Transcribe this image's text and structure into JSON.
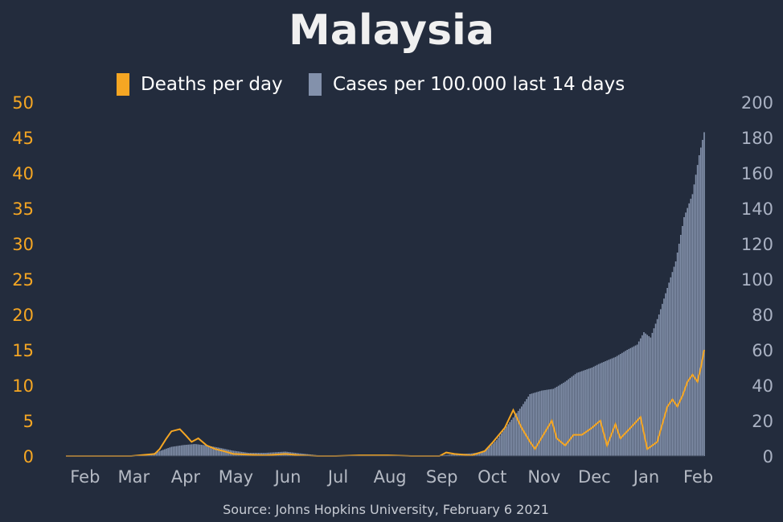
{
  "chart_data": {
    "type": "bar+line",
    "title": "Malaysia",
    "source": "Source: Johns Hopkins University, February 6 2021",
    "legend": [
      {
        "label": "Deaths per day",
        "color": "#f5a623",
        "kind": "line"
      },
      {
        "label": "Cases per 100.000 last 14 days",
        "color": "#8391ab",
        "kind": "bar"
      }
    ],
    "legend_position": "top-center",
    "x_ticks": [
      "Feb",
      "Mar",
      "Apr",
      "May",
      "Jun",
      "Jul",
      "Aug",
      "Sep",
      "Oct",
      "Nov",
      "Dec",
      "Jan",
      "Feb"
    ],
    "y_left": {
      "min": 0,
      "max": 50,
      "ticks": [
        "0",
        "5",
        "10",
        "15",
        "20",
        "25",
        "30",
        "35",
        "40",
        "45",
        "50"
      ],
      "color": "#f5a623"
    },
    "y_right": {
      "min": 0,
      "max": 200,
      "ticks": [
        "0",
        "20",
        "40",
        "60",
        "80",
        "100",
        "120",
        "140",
        "160",
        "180",
        "200"
      ],
      "color": "#aab2c3"
    },
    "grid": false,
    "cases_per_100k_14d": {
      "dates": [
        "2020-01-22",
        "2020-02-01",
        "2020-02-15",
        "2020-03-01",
        "2020-03-10",
        "2020-03-15",
        "2020-03-20",
        "2020-03-25",
        "2020-04-01",
        "2020-04-08",
        "2020-04-15",
        "2020-04-22",
        "2020-05-01",
        "2020-05-10",
        "2020-05-20",
        "2020-06-01",
        "2020-06-10",
        "2020-06-20",
        "2020-07-01",
        "2020-07-15",
        "2020-08-01",
        "2020-08-15",
        "2020-09-01",
        "2020-09-10",
        "2020-09-20",
        "2020-09-28",
        "2020-10-05",
        "2020-10-12",
        "2020-10-20",
        "2020-10-25",
        "2020-11-01",
        "2020-11-08",
        "2020-11-15",
        "2020-11-22",
        "2020-12-01",
        "2020-12-05",
        "2020-12-10",
        "2020-12-15",
        "2020-12-22",
        "2020-12-28",
        "2021-01-01",
        "2021-01-05",
        "2021-01-10",
        "2021-01-15",
        "2021-01-20",
        "2021-01-25",
        "2021-01-30",
        "2021-02-03",
        "2021-02-06"
      ],
      "values": [
        0,
        0,
        0.1,
        0.2,
        0.7,
        1.8,
        3.5,
        5.2,
        6.2,
        6.8,
        6.0,
        4.8,
        3.0,
        1.8,
        1.8,
        2.5,
        1.5,
        0.5,
        0.2,
        0.1,
        0.1,
        0.1,
        0.3,
        1.0,
        1.5,
        2.5,
        9,
        18,
        28,
        35,
        37,
        38,
        42,
        47,
        50,
        52,
        54,
        56,
        60,
        63,
        70,
        67,
        80,
        95,
        110,
        135,
        148,
        170,
        183
      ]
    },
    "deaths_per_day": {
      "dates": [
        "2020-01-22",
        "2020-03-01",
        "2020-03-15",
        "2020-03-18",
        "2020-03-22",
        "2020-03-25",
        "2020-03-30",
        "2020-04-03",
        "2020-04-06",
        "2020-04-10",
        "2020-04-15",
        "2020-04-20",
        "2020-04-25",
        "2020-05-01",
        "2020-05-10",
        "2020-05-20",
        "2020-06-01",
        "2020-06-10",
        "2020-06-20",
        "2020-07-01",
        "2020-07-15",
        "2020-08-01",
        "2020-08-15",
        "2020-09-01",
        "2020-09-05",
        "2020-09-10",
        "2020-09-20",
        "2020-09-28",
        "2020-10-03",
        "2020-10-10",
        "2020-10-15",
        "2020-10-20",
        "2020-10-25",
        "2020-10-28",
        "2020-11-02",
        "2020-11-07",
        "2020-11-10",
        "2020-11-15",
        "2020-11-20",
        "2020-11-25",
        "2020-12-01",
        "2020-12-06",
        "2020-12-10",
        "2020-12-15",
        "2020-12-18",
        "2020-12-22",
        "2020-12-26",
        "2020-12-30",
        "2021-01-03",
        "2021-01-06",
        "2021-01-09",
        "2021-01-12",
        "2021-01-15",
        "2021-01-18",
        "2021-01-21",
        "2021-01-24",
        "2021-01-27",
        "2021-01-30",
        "2021-02-02",
        "2021-02-04",
        "2021-02-06"
      ],
      "values": [
        0,
        0,
        0.3,
        1,
        2.5,
        3.5,
        3.8,
        2.8,
        2.0,
        2.5,
        1.5,
        1.0,
        0.7,
        0.3,
        0.2,
        0.1,
        0.3,
        0.1,
        0,
        0,
        0.1,
        0.1,
        0,
        0,
        0.5,
        0.3,
        0.1,
        0.7,
        2.0,
        4.0,
        6.5,
        4.0,
        2.0,
        1.0,
        3.0,
        5.0,
        2.5,
        1.5,
        3.0,
        3.0,
        4.0,
        5.0,
        1.5,
        4.5,
        2.5,
        3.5,
        4.5,
        5.5,
        1.0,
        1.5,
        2.0,
        4.5,
        7.0,
        8.0,
        7.0,
        8.5,
        10.5,
        11.5,
        10.5,
        12.5,
        15.0
      ]
    },
    "x_range": [
      "2020-01-22",
      "2021-02-06"
    ]
  }
}
